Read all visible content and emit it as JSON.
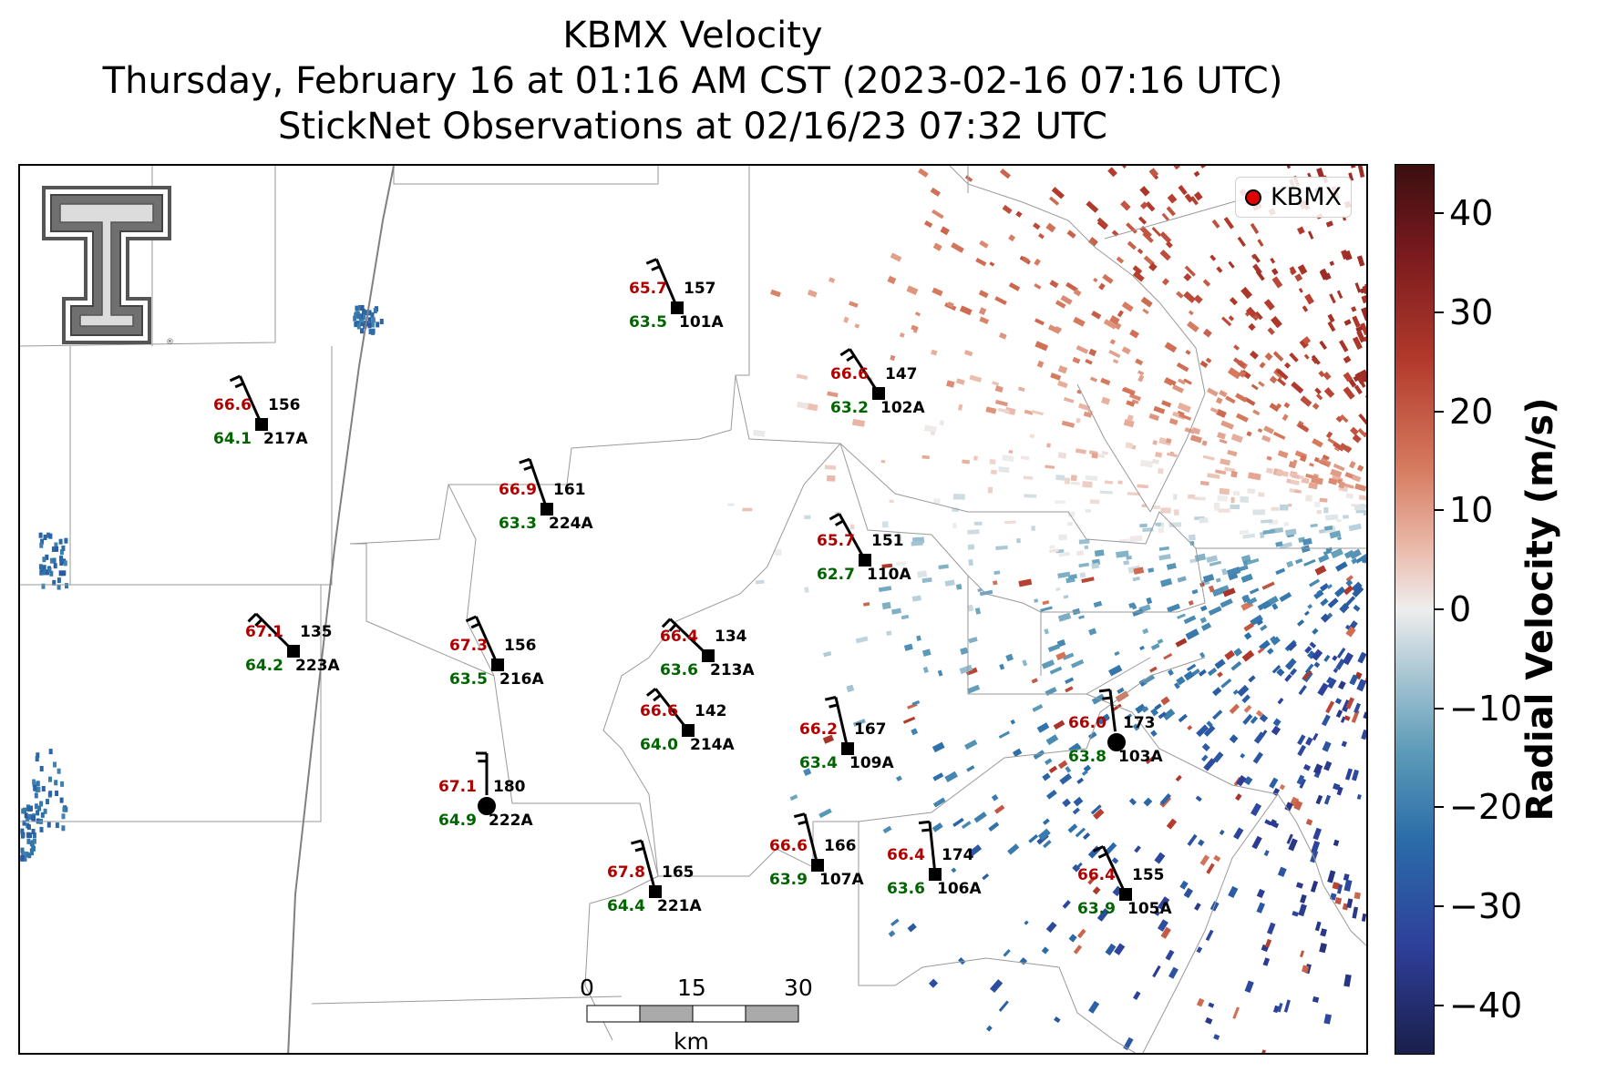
{
  "title": {
    "line1": "KBMX Velocity",
    "line2": "Thursday, February 16 at 01:16 AM CST (2023-02-16 07:16 UTC)",
    "line3": "StickNet Observations at 02/16/23 07:32 UTC"
  },
  "legend": {
    "label": "KBMX",
    "marker_color": "#e00000"
  },
  "logo": {
    "icon": "texas-tech-double-t-logo"
  },
  "scalebar": {
    "ticks": [
      "0",
      "15",
      "30"
    ],
    "unit": "km"
  },
  "colorbar": {
    "label": "Radial Velocity (m/s)",
    "ticks": [
      "40",
      "30",
      "20",
      "10",
      "0",
      "−10",
      "−20",
      "−30",
      "−40"
    ],
    "range": [
      -45,
      45
    ]
  },
  "stations": [
    {
      "id": "101A",
      "temp": "65.7",
      "dew": "63.5",
      "dir": "157"
    },
    {
      "id": "102A",
      "temp": "66.6",
      "dew": "63.2",
      "dir": "147"
    },
    {
      "id": "217A",
      "temp": "66.6",
      "dew": "64.1",
      "dir": "156"
    },
    {
      "id": "224A",
      "temp": "66.9",
      "dew": "63.3",
      "dir": "161"
    },
    {
      "id": "110A",
      "temp": "65.7",
      "dew": "62.7",
      "dir": "151"
    },
    {
      "id": "223A",
      "temp": "67.1",
      "dew": "64.2",
      "dir": "135"
    },
    {
      "id": "216A",
      "temp": "67.3",
      "dew": "63.5",
      "dir": "156"
    },
    {
      "id": "213A",
      "temp": "66.4",
      "dew": "63.6",
      "dir": "134"
    },
    {
      "id": "214A",
      "temp": "66.6",
      "dew": "64.0",
      "dir": "142"
    },
    {
      "id": "109A",
      "temp": "66.2",
      "dew": "63.4",
      "dir": "167"
    },
    {
      "id": "103A",
      "temp": "66.0",
      "dew": "63.8",
      "dir": "173"
    },
    {
      "id": "222A",
      "temp": "67.1",
      "dew": "64.9",
      "dir": "180"
    },
    {
      "id": "107A",
      "temp": "66.6",
      "dew": "63.9",
      "dir": "166"
    },
    {
      "id": "106A",
      "temp": "66.4",
      "dew": "63.6",
      "dir": "174"
    },
    {
      "id": "221A",
      "temp": "67.8",
      "dew": "64.4",
      "dir": "165"
    },
    {
      "id": "105A",
      "temp": "66.4",
      "dew": "63.9",
      "dir": "155"
    }
  ]
}
